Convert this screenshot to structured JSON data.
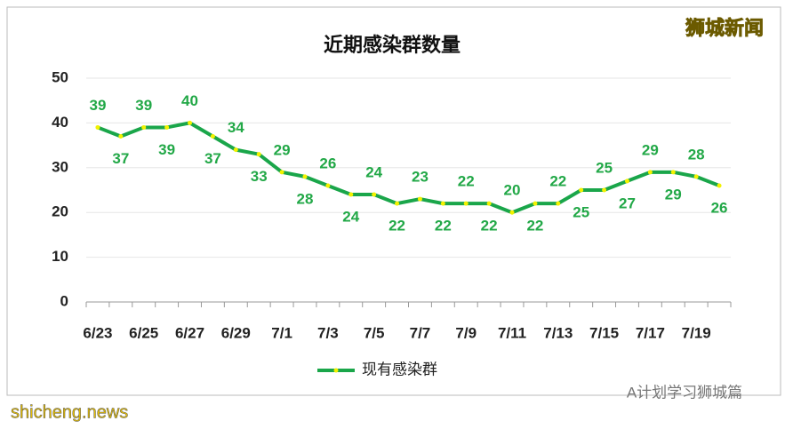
{
  "chart_data": {
    "type": "line",
    "title": "近期感染群数量",
    "categories": [
      "6/23",
      null,
      "6/25",
      null,
      "6/27",
      null,
      "6/29",
      null,
      "7/1",
      null,
      "7/3",
      null,
      "7/5",
      null,
      "7/7",
      null,
      "7/9",
      null,
      "7/11",
      null,
      "7/13",
      null,
      "7/15",
      null,
      "7/17",
      null,
      "7/19",
      null
    ],
    "series": [
      {
        "name": "现有感染群",
        "color": "#1aa64a",
        "marker_color": "#f2f200",
        "values": [
          39,
          37,
          39,
          39,
          40,
          37,
          34,
          33,
          29,
          28,
          26,
          24,
          24,
          22,
          23,
          22,
          22,
          22,
          20,
          22,
          22,
          25,
          25,
          27,
          29,
          29,
          28,
          26
        ]
      }
    ],
    "ylim": [
      0,
      50
    ],
    "yticks": [
      0,
      10,
      20,
      30,
      40,
      50
    ],
    "grid": true,
    "legend": "bottom"
  },
  "watermarks": [
    "狮城新闻",
    "A计划学习狮城篇",
    "shicheng.news"
  ]
}
